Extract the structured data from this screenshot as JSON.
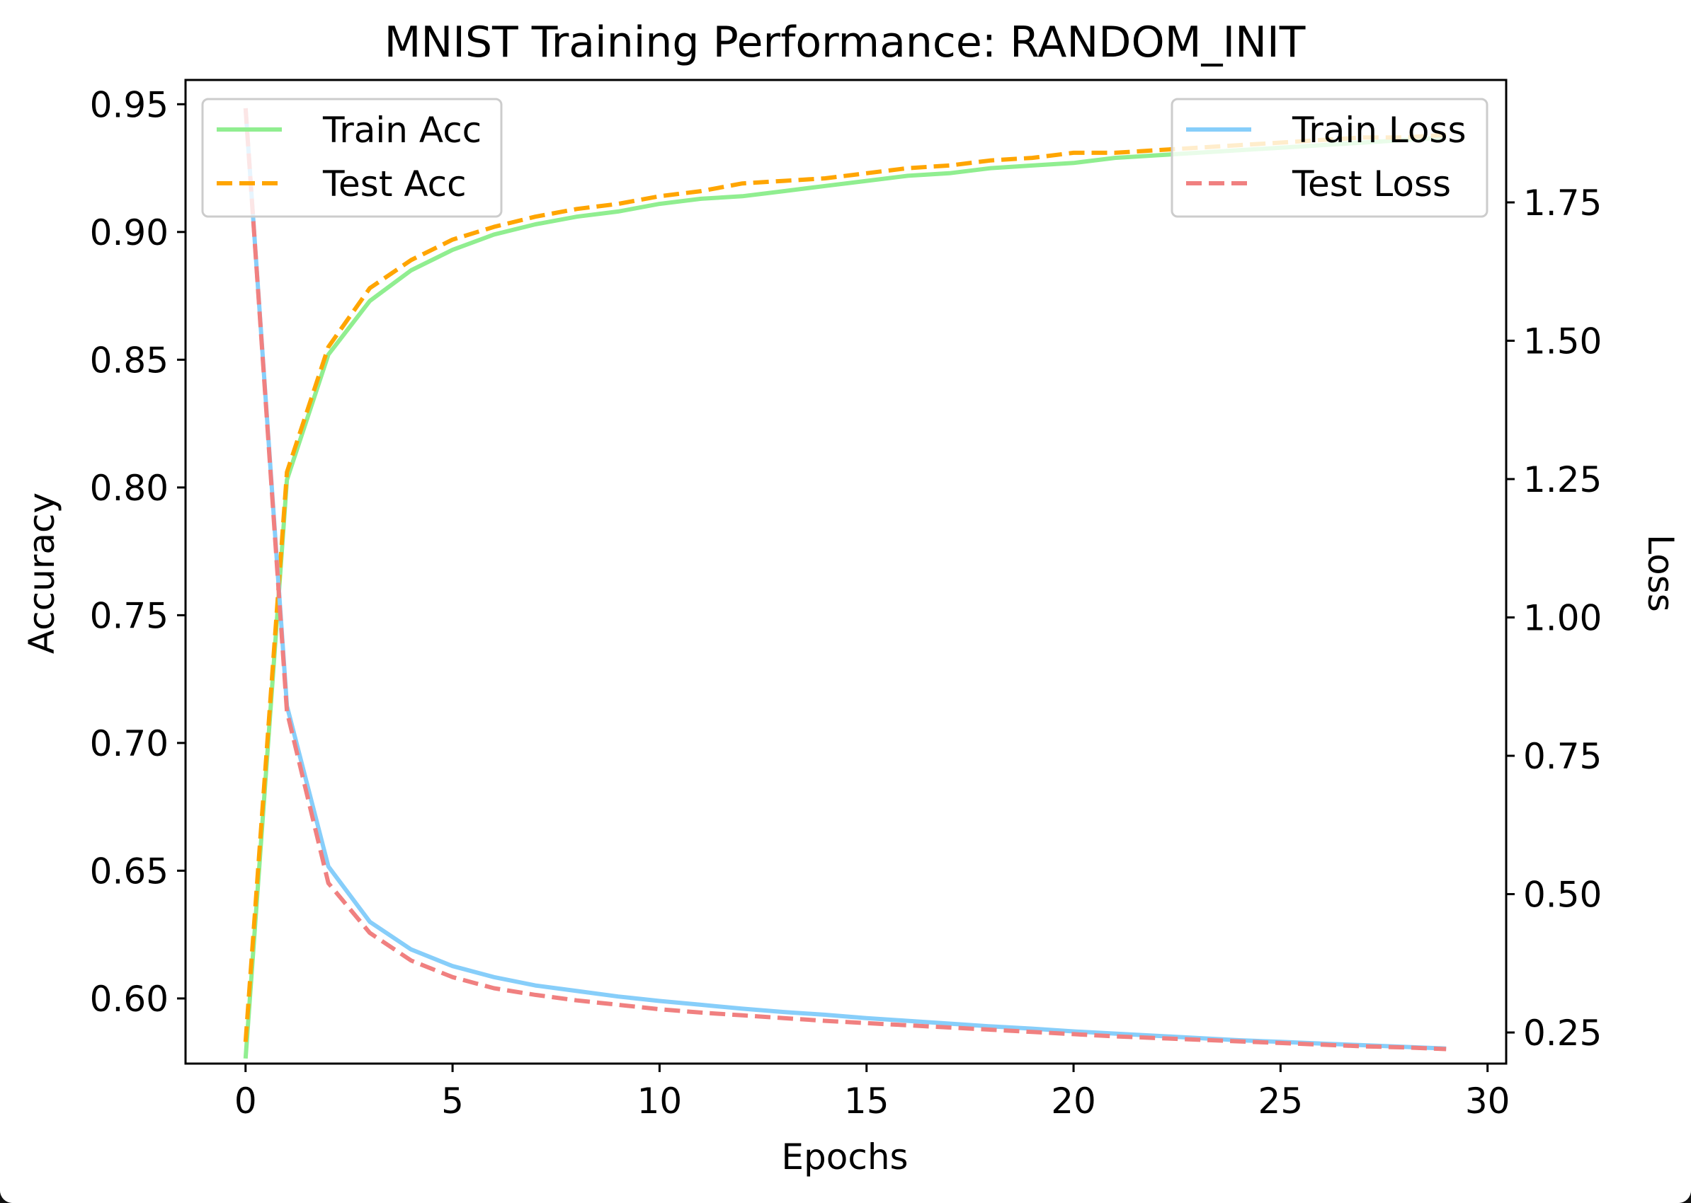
{
  "chart_data": {
    "type": "line",
    "title": "MNIST Training Performance: RANDOM_INIT",
    "xlabel": "Epochs",
    "ylabel": "Accuracy",
    "y2label": "Loss",
    "xlim": [
      -1.45,
      30.45
    ],
    "ylim": [
      0.5745,
      0.9595
    ],
    "y2lim": [
      0.1938,
      1.9712
    ],
    "x": [
      0,
      1,
      2,
      3,
      4,
      5,
      6,
      7,
      8,
      9,
      10,
      11,
      12,
      13,
      14,
      15,
      16,
      17,
      18,
      19,
      20,
      21,
      22,
      23,
      24,
      25,
      26,
      27,
      28,
      29
    ],
    "xticks": [
      {
        "value": 0,
        "label": "0"
      },
      {
        "value": 5,
        "label": "5"
      },
      {
        "value": 10,
        "label": "10"
      },
      {
        "value": 15,
        "label": "15"
      },
      {
        "value": 20,
        "label": "20"
      },
      {
        "value": 25,
        "label": "25"
      },
      {
        "value": 30,
        "label": "30"
      }
    ],
    "yticks": [
      {
        "value": 0.6,
        "label": "0.60"
      },
      {
        "value": 0.65,
        "label": "0.65"
      },
      {
        "value": 0.7,
        "label": "0.70"
      },
      {
        "value": 0.75,
        "label": "0.75"
      },
      {
        "value": 0.8,
        "label": "0.80"
      },
      {
        "value": 0.85,
        "label": "0.85"
      },
      {
        "value": 0.9,
        "label": "0.90"
      },
      {
        "value": 0.95,
        "label": "0.95"
      }
    ],
    "y2ticks": [
      {
        "value": 0.25,
        "label": "0.25"
      },
      {
        "value": 0.5,
        "label": "0.50"
      },
      {
        "value": 0.75,
        "label": "0.75"
      },
      {
        "value": 1.0,
        "label": "1.00"
      },
      {
        "value": 1.25,
        "label": "1.25"
      },
      {
        "value": 1.5,
        "label": "1.50"
      },
      {
        "value": 1.75,
        "label": "1.75"
      }
    ],
    "grid": false,
    "series": [
      {
        "name": "Train Acc",
        "axis": "left",
        "color": "#90ee90",
        "style": "solid",
        "values": [
          0.5765,
          0.803,
          0.852,
          0.873,
          0.885,
          0.893,
          0.899,
          0.903,
          0.906,
          0.908,
          0.911,
          0.913,
          0.914,
          0.916,
          0.918,
          0.92,
          0.922,
          0.923,
          0.925,
          0.926,
          0.927,
          0.929,
          0.93,
          0.931,
          0.932,
          0.933,
          0.934,
          0.935,
          0.936,
          0.937
        ]
      },
      {
        "name": "Test Acc",
        "axis": "left",
        "color": "#ffa500",
        "style": "dashed",
        "values": [
          0.583,
          0.806,
          0.855,
          0.878,
          0.889,
          0.897,
          0.902,
          0.906,
          0.909,
          0.911,
          0.914,
          0.916,
          0.919,
          0.92,
          0.921,
          0.923,
          0.925,
          0.926,
          0.928,
          0.929,
          0.931,
          0.931,
          0.932,
          0.933,
          0.934,
          0.935,
          0.936,
          0.937,
          0.937,
          0.938
        ]
      },
      {
        "name": "Train Loss",
        "axis": "right",
        "color": "#87cefa",
        "style": "solid",
        "values": [
          1.92,
          0.84,
          0.55,
          0.45,
          0.4,
          0.37,
          0.35,
          0.335,
          0.325,
          0.315,
          0.307,
          0.3,
          0.293,
          0.287,
          0.282,
          0.276,
          0.271,
          0.266,
          0.261,
          0.257,
          0.252,
          0.248,
          0.244,
          0.24,
          0.236,
          0.233,
          0.23,
          0.227,
          0.224,
          0.221
        ]
      },
      {
        "name": "Test Loss",
        "axis": "right",
        "color": "#f08080",
        "style": "dashed",
        "values": [
          1.92,
          0.83,
          0.52,
          0.43,
          0.38,
          0.35,
          0.33,
          0.318,
          0.308,
          0.3,
          0.292,
          0.286,
          0.281,
          0.276,
          0.271,
          0.267,
          0.263,
          0.259,
          0.255,
          0.251,
          0.247,
          0.243,
          0.24,
          0.237,
          0.234,
          0.231,
          0.228,
          0.225,
          0.223,
          0.22
        ]
      }
    ],
    "legends": [
      {
        "placement": "upper left",
        "entries": [
          "Train Acc",
          "Test Acc"
        ]
      },
      {
        "placement": "upper right",
        "entries": [
          "Train Loss",
          "Test Loss"
        ]
      }
    ]
  }
}
